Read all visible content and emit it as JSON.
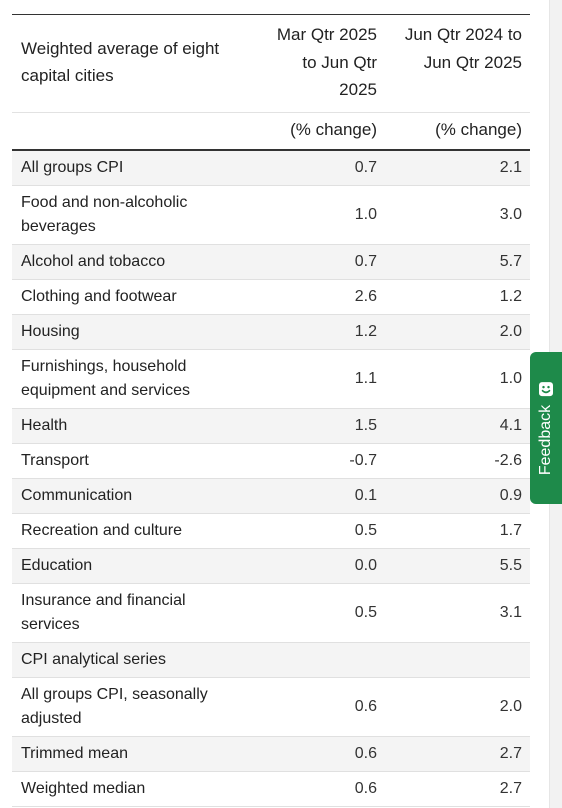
{
  "table": {
    "header": {
      "label": "Weighted average of eight capital cities",
      "col1": "Mar Qtr 2025 to Jun Qtr 2025",
      "col2": "Jun Qtr 2024 to Jun Qtr 2025",
      "unit1": "(% change)",
      "unit2": "(% change)"
    },
    "rows": [
      {
        "label": "All groups CPI",
        "v1": "0.7",
        "v2": "2.1"
      },
      {
        "label": "Food and non-alcoholic beverages",
        "v1": "1.0",
        "v2": "3.0"
      },
      {
        "label": "Alcohol and tobacco",
        "v1": "0.7",
        "v2": "5.7"
      },
      {
        "label": "Clothing and footwear",
        "v1": "2.6",
        "v2": "1.2"
      },
      {
        "label": "Housing",
        "v1": "1.2",
        "v2": "2.0"
      },
      {
        "label": "Furnishings, household equipment and services",
        "v1": "1.1",
        "v2": "1.0"
      },
      {
        "label": "Health",
        "v1": "1.5",
        "v2": "4.1"
      },
      {
        "label": "Transport",
        "v1": "-0.7",
        "v2": "-2.6"
      },
      {
        "label": "Communication",
        "v1": "0.1",
        "v2": "0.9"
      },
      {
        "label": "Recreation and culture",
        "v1": "0.5",
        "v2": "1.7"
      },
      {
        "label": "Education",
        "v1": "0.0",
        "v2": "5.5"
      },
      {
        "label": "Insurance and financial services",
        "v1": "0.5",
        "v2": "3.1"
      },
      {
        "label": "CPI analytical series",
        "v1": "",
        "v2": ""
      },
      {
        "label": "All groups CPI, seasonally adjusted",
        "v1": "0.6",
        "v2": "2.0"
      },
      {
        "label": "Trimmed mean",
        "v1": "0.6",
        "v2": "2.7"
      },
      {
        "label": "Weighted median",
        "v1": "0.6",
        "v2": "2.7"
      }
    ]
  },
  "feedback": {
    "label": "Feedback",
    "icon": "smiley-feedback-icon",
    "color": "#1e8a4a"
  }
}
